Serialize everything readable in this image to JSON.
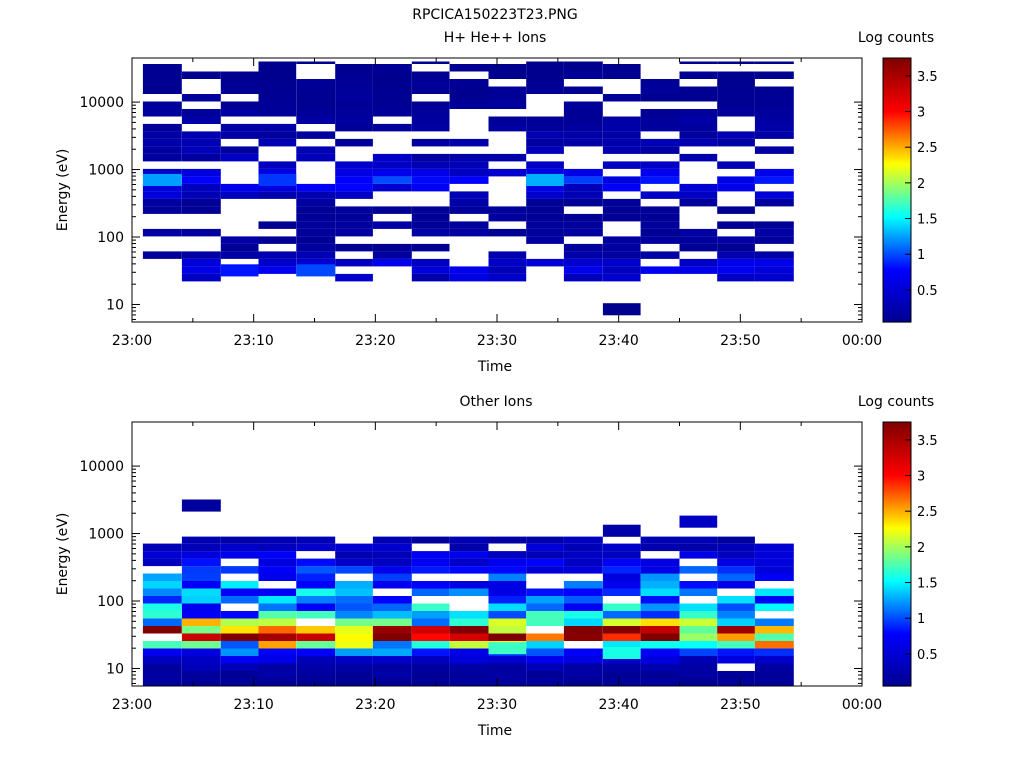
{
  "figure_title": "RPCICA150223T23.PNG",
  "colorbar": {
    "title": "Log counts",
    "ticks": [
      "0.5",
      "1",
      "1.5",
      "2",
      "2.5",
      "3",
      "3.5"
    ],
    "tick_values": [
      0.5,
      1,
      1.5,
      2,
      2.5,
      3,
      3.5
    ],
    "range": [
      0.05,
      3.75
    ],
    "colormap": [
      "#00008f",
      "#0000ff",
      "#00ffff",
      "#ffff00",
      "#ff0000",
      "#800000"
    ]
  },
  "chart_data": [
    {
      "type": "heatmap",
      "title": "H+ He++ Ions",
      "xlabel": "Time",
      "ylabel": "Energy (eV)",
      "x_tick_labels": [
        "23:00",
        "23:10",
        "23:20",
        "23:30",
        "23:40",
        "23:50",
        "00:00"
      ],
      "xlim_minutes": [
        0,
        60
      ],
      "y_scale": "log",
      "ylim": [
        5.5,
        45000
      ],
      "y_tick_labels": [
        "10",
        "100",
        "1000",
        "10000"
      ],
      "time_bins_minutes": [
        [
          0.9,
          4.1
        ],
        [
          4.1,
          7.3
        ],
        [
          7.3,
          10.4
        ],
        [
          10.4,
          13.5
        ],
        [
          13.5,
          16.7
        ],
        [
          16.7,
          19.8
        ],
        [
          19.8,
          23.0
        ],
        [
          23.0,
          26.1
        ],
        [
          26.1,
          29.3
        ],
        [
          29.3,
          32.4
        ],
        [
          32.4,
          35.5
        ],
        [
          35.5,
          38.7
        ],
        [
          38.7,
          41.8
        ],
        [
          41.8,
          45.0
        ],
        [
          45.0,
          48.1
        ],
        [
          48.1,
          51.2
        ],
        [
          51.2,
          54.4
        ]
      ],
      "energy_range_eV": [
        22,
        40000
      ],
      "profile_energies_eV": [
        10,
        30,
        40,
        60,
        100,
        300,
        700,
        1000,
        3000,
        10000,
        40000
      ],
      "profile_log_counts": [
        0.05,
        0.5,
        0.5,
        0.1,
        0.15,
        0.1,
        0.8,
        0.35,
        0.2,
        0.1,
        0.05
      ],
      "fill_fraction": 0.65,
      "special_cells": [
        {
          "time_bin": 0,
          "energy_eV": 700,
          "log_counts": 1.25
        },
        {
          "time_bin": 10,
          "energy_eV": 700,
          "log_counts": 1.3
        },
        {
          "time_bin": 3,
          "energy_eV": 700,
          "log_counts": 0.95
        },
        {
          "time_bin": 2,
          "energy_eV": 32,
          "log_counts": 0.85
        },
        {
          "time_bin": 4,
          "energy_eV": 32,
          "log_counts": 1.0
        },
        {
          "time_bin": 12,
          "energy_eV": 8.5,
          "log_counts": 0.05
        }
      ]
    },
    {
      "type": "heatmap",
      "title": "Other Ions",
      "xlabel": "Time",
      "ylabel": "Energy (eV)",
      "x_tick_labels": [
        "23:00",
        "23:10",
        "23:20",
        "23:30",
        "23:40",
        "23:50",
        "00:00"
      ],
      "xlim_minutes": [
        0,
        60
      ],
      "y_scale": "log",
      "ylim": [
        5.5,
        45000
      ],
      "y_tick_labels": [
        "10",
        "100",
        "1000",
        "10000"
      ],
      "time_bins_minutes": [
        [
          0.9,
          4.1
        ],
        [
          4.1,
          7.3
        ],
        [
          7.3,
          10.4
        ],
        [
          10.4,
          13.5
        ],
        [
          13.5,
          16.7
        ],
        [
          16.7,
          19.8
        ],
        [
          19.8,
          23.0
        ],
        [
          23.0,
          26.1
        ],
        [
          26.1,
          29.3
        ],
        [
          29.3,
          32.4
        ],
        [
          32.4,
          35.5
        ],
        [
          35.5,
          38.7
        ],
        [
          38.7,
          41.8
        ],
        [
          41.8,
          45.0
        ],
        [
          45.0,
          48.1
        ],
        [
          48.1,
          51.2
        ],
        [
          51.2,
          54.4
        ]
      ],
      "energy_range_eV": [
        5.5,
        900
      ],
      "profile_energies_eV": [
        6,
        10,
        15,
        20,
        25,
        30,
        35,
        45,
        60,
        100,
        200,
        400,
        900
      ],
      "profile_log_counts": [
        0.1,
        0.2,
        0.6,
        1.3,
        2.4,
        3.4,
        3.6,
        2.2,
        1.3,
        1.2,
        1.0,
        0.6,
        0.2
      ],
      "fill_fraction": 0.85,
      "special_cells": [
        {
          "time_bin": 1,
          "energy_eV": 2600,
          "log_counts": 0.15
        },
        {
          "time_bin": 14,
          "energy_eV": 1500,
          "log_counts": 0.4
        },
        {
          "time_bin": 12,
          "energy_eV": 1100,
          "log_counts": 0.2
        },
        {
          "time_bin": 12,
          "energy_eV": 17,
          "log_counts": 1.6
        },
        {
          "time_bin": 9,
          "energy_eV": 20,
          "log_counts": 1.7
        }
      ]
    }
  ]
}
